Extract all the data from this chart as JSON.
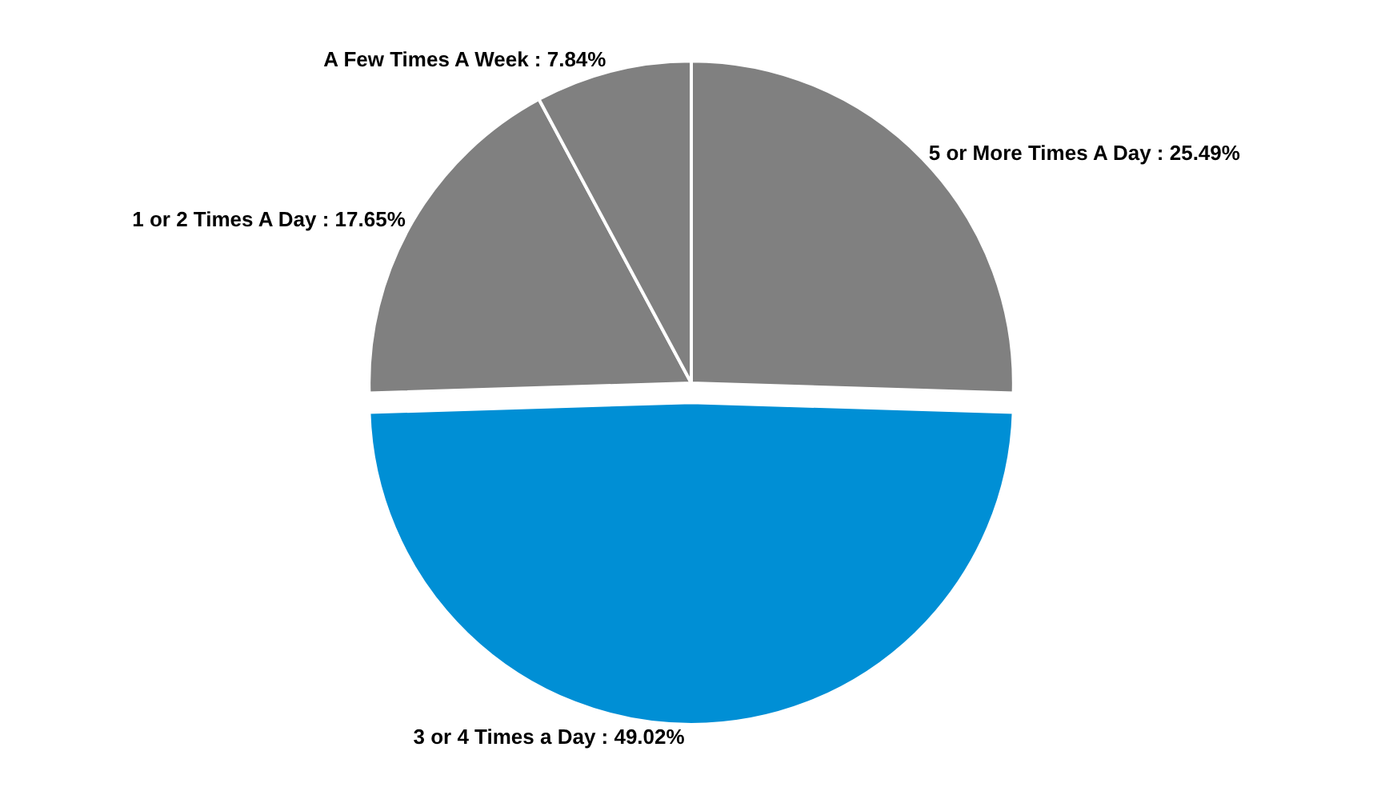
{
  "chart_data": {
    "type": "pie",
    "categories": [
      "5 or More Times A Day",
      "3 or 4 Times a Day",
      "1 or 2 Times A Day",
      "A Few Times A Week"
    ],
    "values": [
      25.49,
      49.02,
      17.65,
      7.84
    ],
    "colors": [
      "#808080",
      "#008fd5",
      "#808080",
      "#808080"
    ],
    "value_labels": [
      "25.49%",
      "49.02%",
      "17.65%",
      "7.84%"
    ],
    "legend": false
  }
}
